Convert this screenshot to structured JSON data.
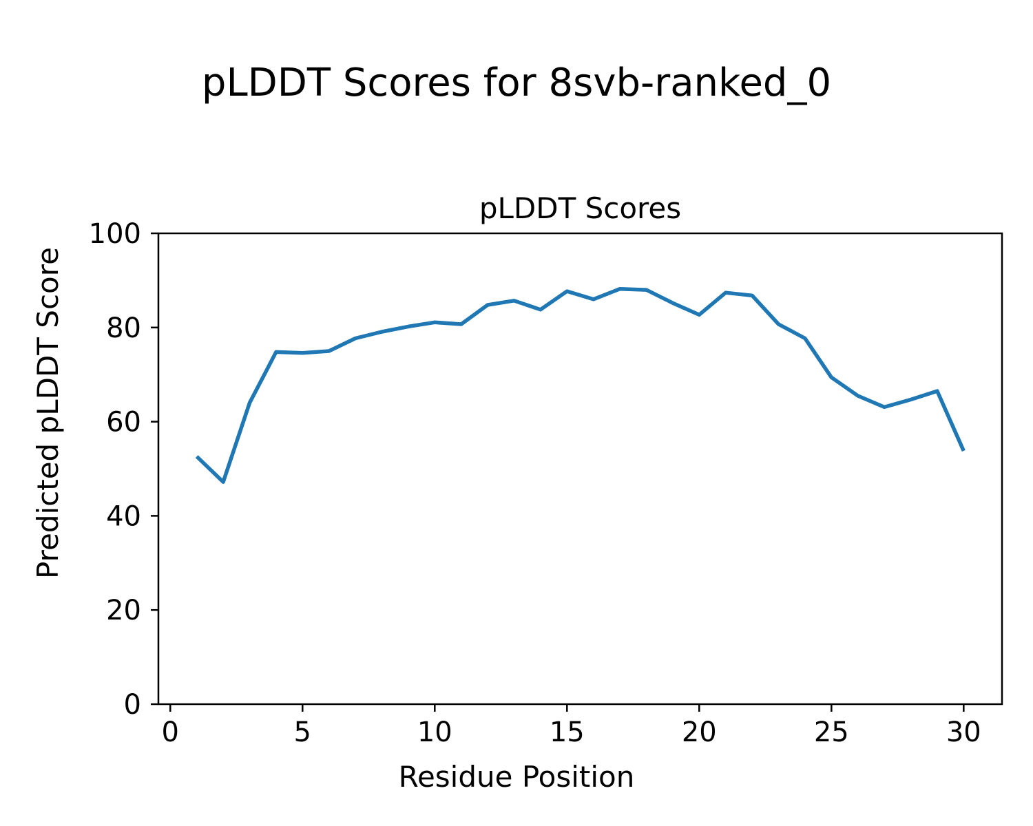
{
  "figure": {
    "background": "#ffffff",
    "suptitle": "pLDDT Scores for 8svb-ranked_0"
  },
  "chart_data": {
    "type": "line",
    "title": "pLDDT Scores",
    "suptitle": "pLDDT Scores for 8svb-ranked_0",
    "xlabel": "Residue Position",
    "ylabel": "Predicted pLDDT Score",
    "x": [
      1,
      2,
      3,
      4,
      5,
      6,
      7,
      8,
      9,
      10,
      11,
      12,
      13,
      14,
      15,
      16,
      17,
      18,
      19,
      20,
      21,
      22,
      23,
      24,
      25,
      26,
      27,
      28,
      29,
      30
    ],
    "series": [
      {
        "name": "pLDDT",
        "values": [
          52.6,
          47.2,
          64.0,
          74.8,
          74.6,
          75.0,
          77.7,
          79.1,
          80.2,
          81.1,
          80.7,
          84.8,
          85.7,
          83.8,
          87.7,
          86.0,
          88.2,
          88.0,
          85.2,
          82.7,
          87.4,
          86.8,
          80.7,
          77.7,
          69.4,
          65.5,
          63.1,
          64.7,
          66.5,
          53.8
        ]
      }
    ],
    "xticks": [
      0,
      5,
      10,
      15,
      20,
      25,
      30
    ],
    "yticks": [
      0,
      20,
      40,
      60,
      80,
      100
    ],
    "xlim": [
      -0.45,
      31.45
    ],
    "ylim": [
      0,
      100
    ],
    "grid": false,
    "legend": false,
    "line_color": "#1f77b4",
    "axis_color": "#000000"
  }
}
